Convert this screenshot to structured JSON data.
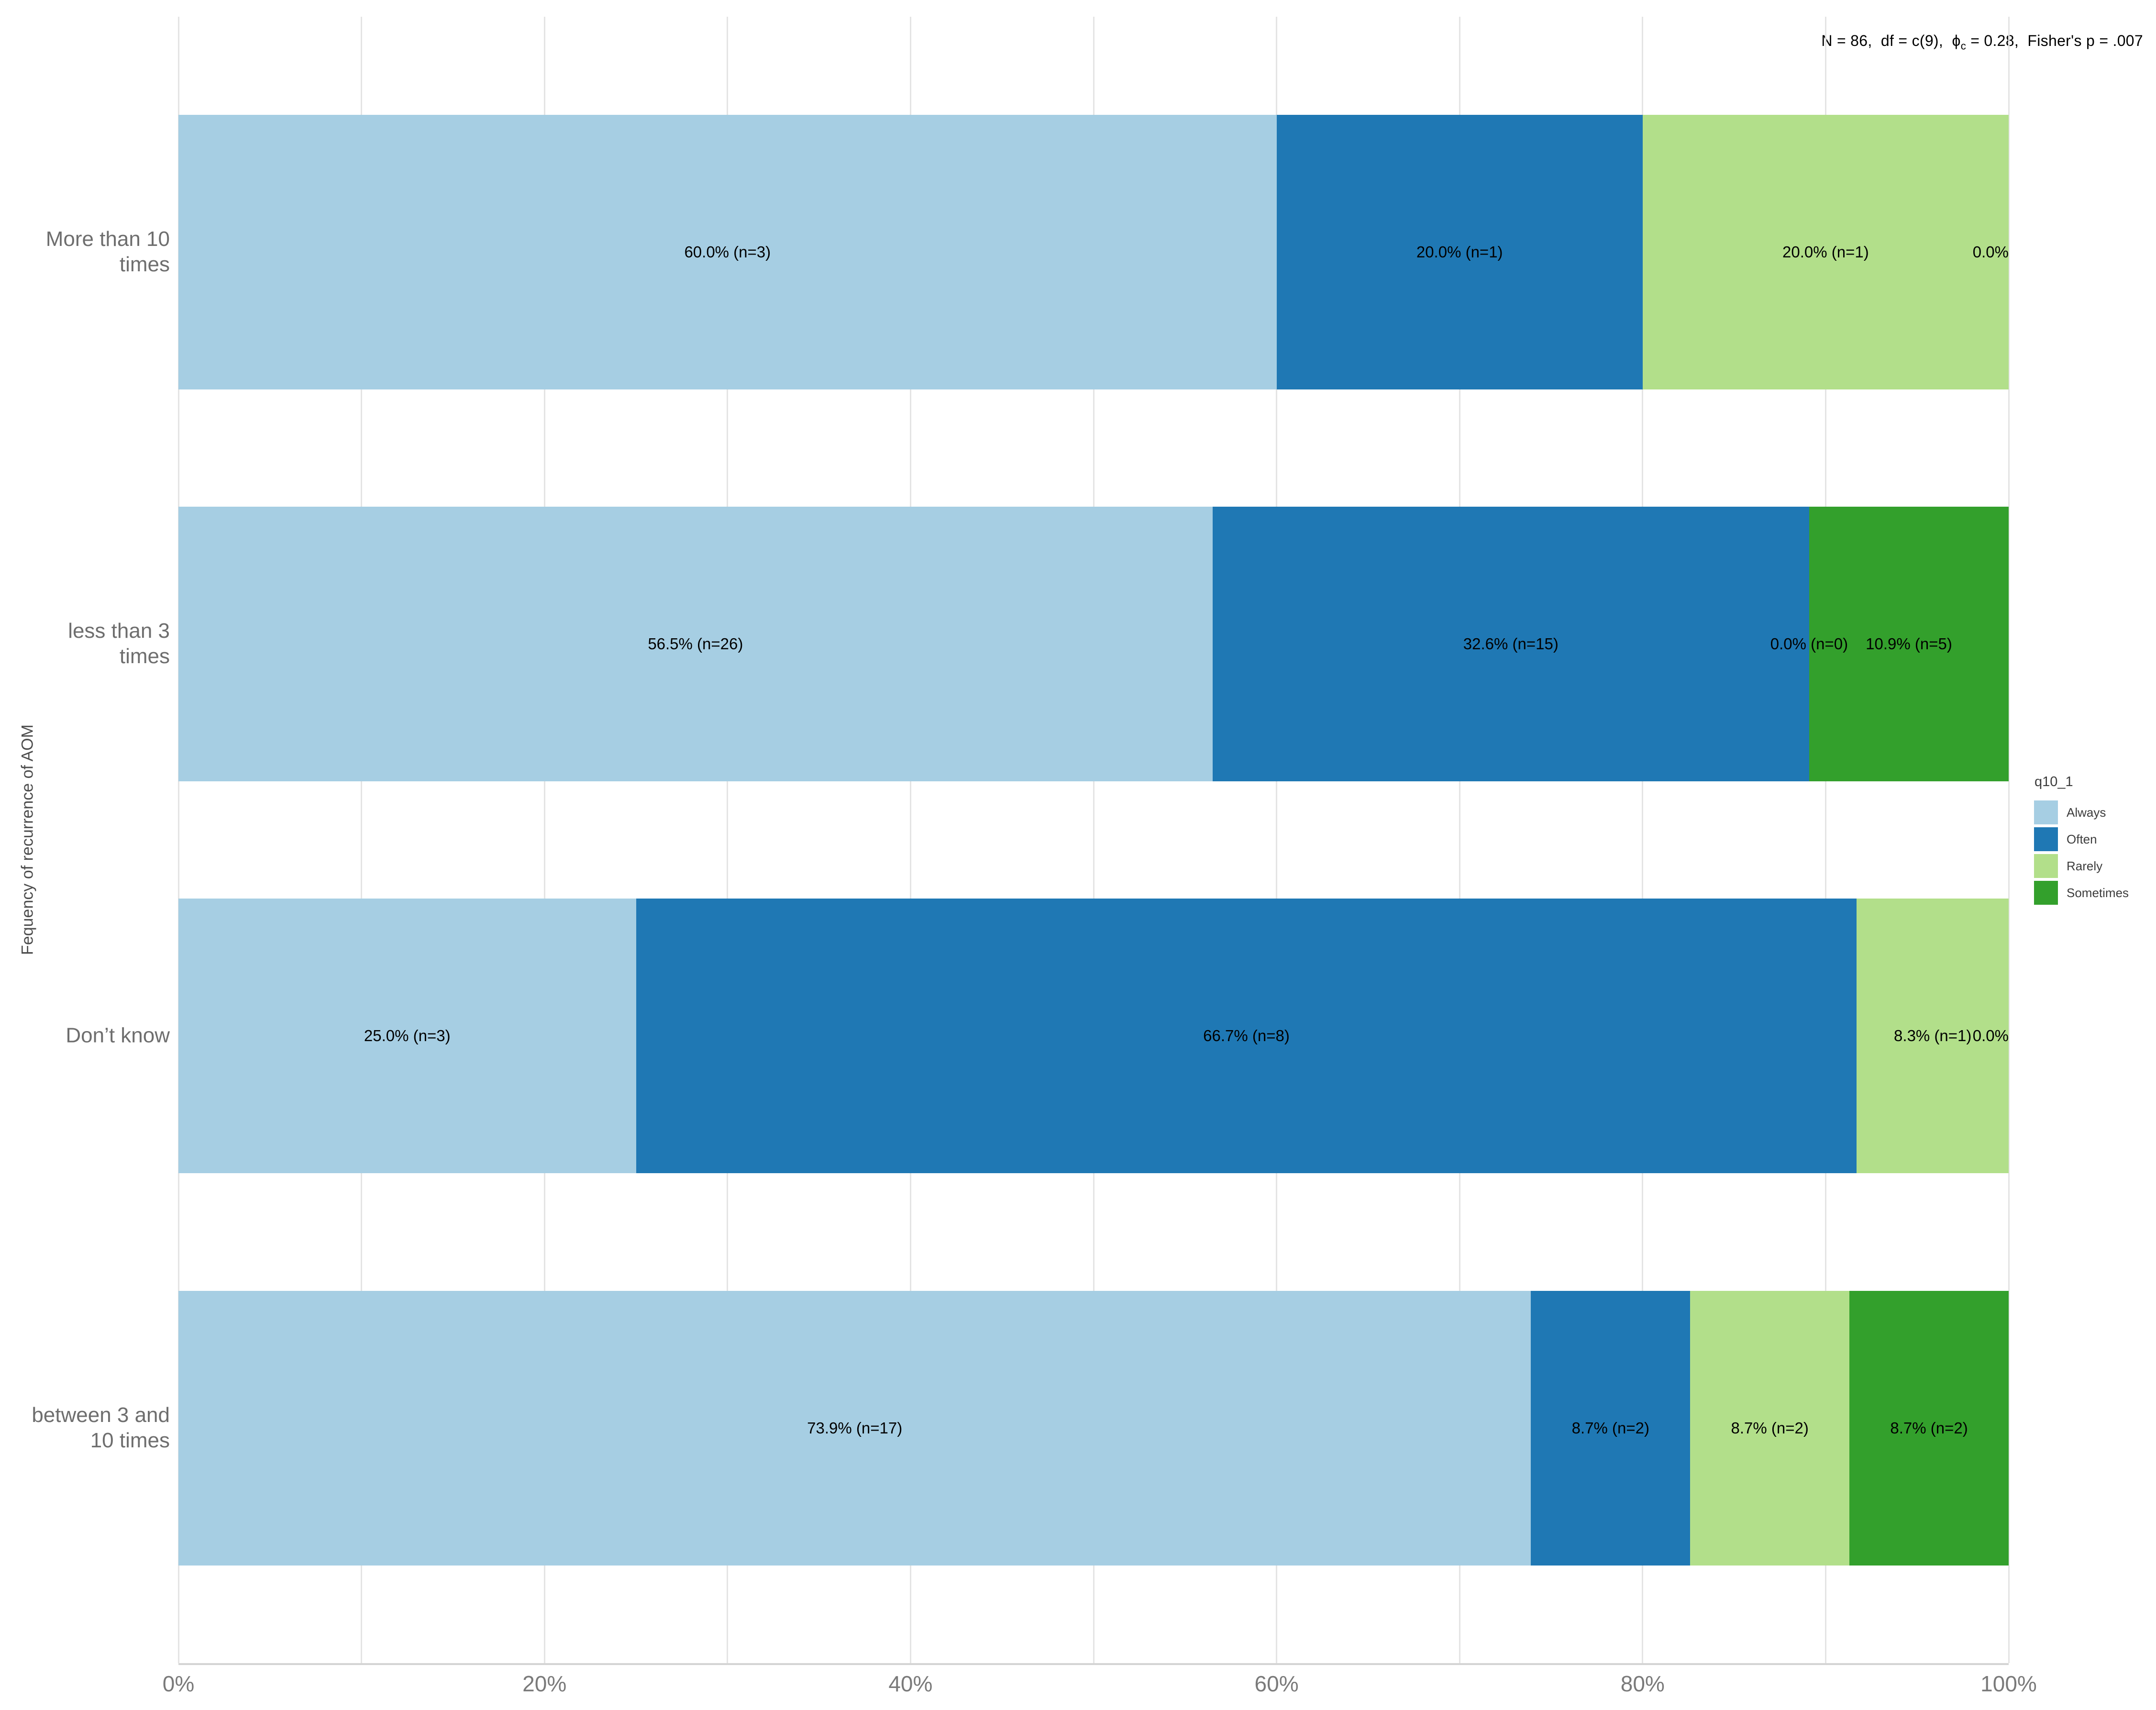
{
  "figure": {
    "annotation": {
      "prefix": "N = 86,  df = c(9),  ",
      "phi": "ϕ",
      "phi_sub": "c",
      "suffix": " = 0.28,  Fisher's p = .007"
    },
    "colors": {
      "always": "#A6CEE3",
      "often": "#1F78B4",
      "rarely": "#B2DF8A",
      "sometimes": "#33A02C",
      "gridline": "#E4E4E4",
      "axis_line": "#D4D4D4",
      "tick_text": "#7A7A7A",
      "category_text": "#6E6E6E",
      "axis_title_text": "#4D4D4D",
      "segment_label_text": "#000000",
      "legend_text": "#3C3C3C",
      "background": "#FFFFFF"
    }
  },
  "chart_data": {
    "type": "bar",
    "orientation": "horizontal",
    "stacked": true,
    "unit": "percent",
    "title": "",
    "xlabel": "",
    "ylabel": "Fequency of recurrence of AOM",
    "xlim": [
      0,
      100
    ],
    "grid": "vertical",
    "gridline_pcts": [
      0,
      10,
      20,
      30,
      40,
      50,
      60,
      70,
      80,
      90,
      100
    ],
    "x_ticks": [
      {
        "pct": 0,
        "label": "0%"
      },
      {
        "pct": 20,
        "label": "20%"
      },
      {
        "pct": 40,
        "label": "40%"
      },
      {
        "pct": 60,
        "label": "60%"
      },
      {
        "pct": 80,
        "label": "80%"
      },
      {
        "pct": 100,
        "label": "100%"
      }
    ],
    "legend": {
      "title": "q10_1",
      "position": "right",
      "entries": [
        {
          "key": "always",
          "label": "Always"
        },
        {
          "key": "often",
          "label": "Often"
        },
        {
          "key": "rarely",
          "label": "Rarely"
        },
        {
          "key": "sometimes",
          "label": "Sometimes"
        }
      ]
    },
    "rows": [
      {
        "category": "More than 10 times",
        "display_label": "More than 10\ntimes",
        "segments": [
          {
            "series": "Always",
            "key": "always",
            "value": 60.0,
            "n": 3,
            "label": "60.0% (n=3)"
          },
          {
            "series": "Often",
            "key": "often",
            "value": 20.0,
            "n": 1,
            "label": "20.0% (n=1)"
          },
          {
            "series": "Rarely",
            "key": "rarely",
            "value": 20.0,
            "n": 1,
            "label": "20.0% (n=1)"
          },
          {
            "series": "Sometimes",
            "key": "sometimes",
            "value": 0.0,
            "label": "0.0%"
          }
        ]
      },
      {
        "category": "less than 3 times",
        "display_label": "less than 3\ntimes",
        "segments": [
          {
            "series": "Always",
            "key": "always",
            "value": 56.5,
            "n": 26,
            "label": "56.5% (n=26)"
          },
          {
            "series": "Often",
            "key": "often",
            "value": 32.6,
            "n": 15,
            "label": "32.6% (n=15)"
          },
          {
            "series": "Rarely",
            "key": "rarely",
            "value": 0.0,
            "n": 0,
            "label": "0.0% (n=0)"
          },
          {
            "series": "Sometimes",
            "key": "sometimes",
            "value": 10.9,
            "n": 5,
            "label": "10.9% (n=5)"
          }
        ]
      },
      {
        "category": "Don’t know",
        "display_label": "Don’t know",
        "segments": [
          {
            "series": "Always",
            "key": "always",
            "value": 25.0,
            "n": 3,
            "label": "25.0% (n=3)"
          },
          {
            "series": "Often",
            "key": "often",
            "value": 66.7,
            "n": 8,
            "label": "66.7% (n=8)"
          },
          {
            "series": "Rarely",
            "key": "rarely",
            "value": 8.3,
            "n": 1,
            "label": "8.3% (n=1)"
          },
          {
            "series": "Sometimes",
            "key": "sometimes",
            "value": 0.0,
            "label": "0.0%"
          }
        ]
      },
      {
        "category": "between 3 and 10 times",
        "display_label": "between 3 and\n10 times",
        "segments": [
          {
            "series": "Always",
            "key": "always",
            "value": 73.9,
            "n": 17,
            "label": "73.9% (n=17)"
          },
          {
            "series": "Often",
            "key": "often",
            "value": 8.7,
            "n": 2,
            "label": "8.7% (n=2)"
          },
          {
            "series": "Rarely",
            "key": "rarely",
            "value": 8.7,
            "n": 2,
            "label": "8.7% (n=2)"
          },
          {
            "series": "Sometimes",
            "key": "sometimes",
            "value": 8.7,
            "n": 2,
            "label": "8.7% (n=2)"
          }
        ]
      }
    ],
    "stats_annotation_plain": "N = 86, df = c(9), ϕc = 0.28, Fisher's p = .007"
  }
}
